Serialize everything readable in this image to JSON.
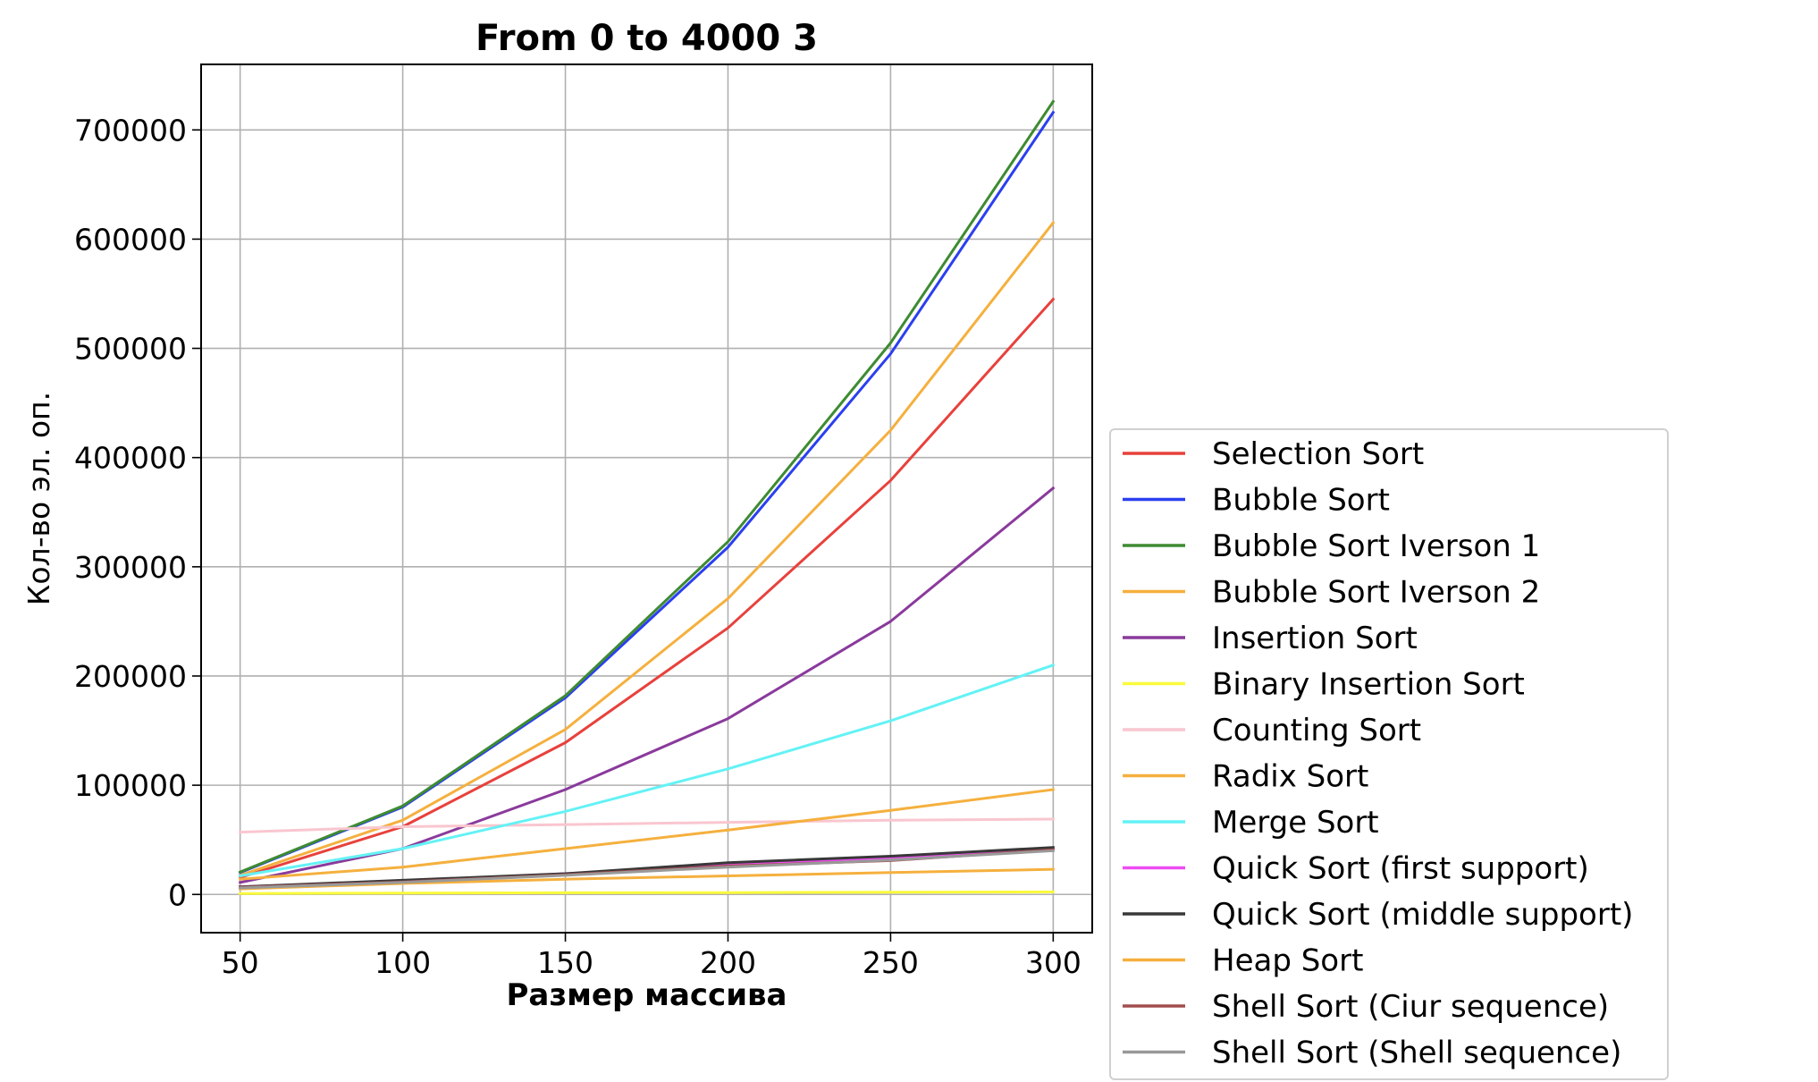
{
  "chart_data": {
    "type": "line",
    "title": "From 0 to 4000 3",
    "xlabel": "Размер массива",
    "ylabel": "Кол-во эл. оп.",
    "x": [
      50,
      100,
      150,
      200,
      250,
      300
    ],
    "xlim": [
      38,
      312
    ],
    "ylim": [
      -35000,
      760000
    ],
    "xticks": [
      50,
      100,
      150,
      200,
      250,
      300
    ],
    "yticks": [
      0,
      100000,
      200000,
      300000,
      400000,
      500000,
      600000,
      700000
    ],
    "grid": true,
    "legend_position": "right-bottom",
    "series": [
      {
        "name": "Selection Sort",
        "color": "#e8413c",
        "values": [
          15500,
          62000,
          139000,
          244000,
          379000,
          545000
        ]
      },
      {
        "name": "Bubble Sort",
        "color": "#2b3ff0",
        "values": [
          20000,
          80000,
          180000,
          318000,
          495000,
          716000
        ]
      },
      {
        "name": "Bubble Sort Iverson 1",
        "color": "#3e8b32",
        "values": [
          20500,
          81000,
          182000,
          323000,
          505000,
          726000
        ]
      },
      {
        "name": "Bubble Sort Iverson 2",
        "color": "#f5b03e",
        "values": [
          17500,
          68000,
          151000,
          271000,
          425000,
          615000
        ]
      },
      {
        "name": "Insertion Sort",
        "color": "#8a3a9c",
        "values": [
          11000,
          42000,
          96000,
          161000,
          250000,
          372000
        ]
      },
      {
        "name": "Binary Insertion Sort",
        "color": "#fafa3c",
        "values": [
          900,
          1300,
          1500,
          1700,
          2000,
          2300
        ]
      },
      {
        "name": "Counting Sort",
        "color": "#f9c6cf",
        "values": [
          57000,
          62000,
          64000,
          66000,
          68000,
          69000
        ]
      },
      {
        "name": "Radix Sort",
        "color": "#f5b03e",
        "values": [
          14000,
          25000,
          42000,
          59000,
          77000,
          96000
        ]
      },
      {
        "name": "Merge Sort",
        "color": "#64f2f5",
        "values": [
          17000,
          42000,
          76000,
          115000,
          159000,
          210000
        ]
      },
      {
        "name": "Quick Sort (first support)",
        "color": "#ee4cf2",
        "values": [
          7000,
          12000,
          19000,
          27000,
          33000,
          42000
        ]
      },
      {
        "name": "Quick Sort (middle support)",
        "color": "#383838",
        "values": [
          7000,
          13000,
          19000,
          29000,
          35000,
          43000
        ]
      },
      {
        "name": "Heap Sort",
        "color": "#f5b03e",
        "values": [
          5000,
          10000,
          14000,
          17000,
          20000,
          23000
        ]
      },
      {
        "name": "Shell Sort (Ciur sequence)",
        "color": "#a34d4d",
        "values": [
          6500,
          11500,
          18000,
          26000,
          31000,
          41000
        ]
      },
      {
        "name": "Shell Sort (Shell sequence)",
        "color": "#999999",
        "values": [
          6000,
          11000,
          17500,
          25000,
          31500,
          40000
        ]
      }
    ]
  }
}
